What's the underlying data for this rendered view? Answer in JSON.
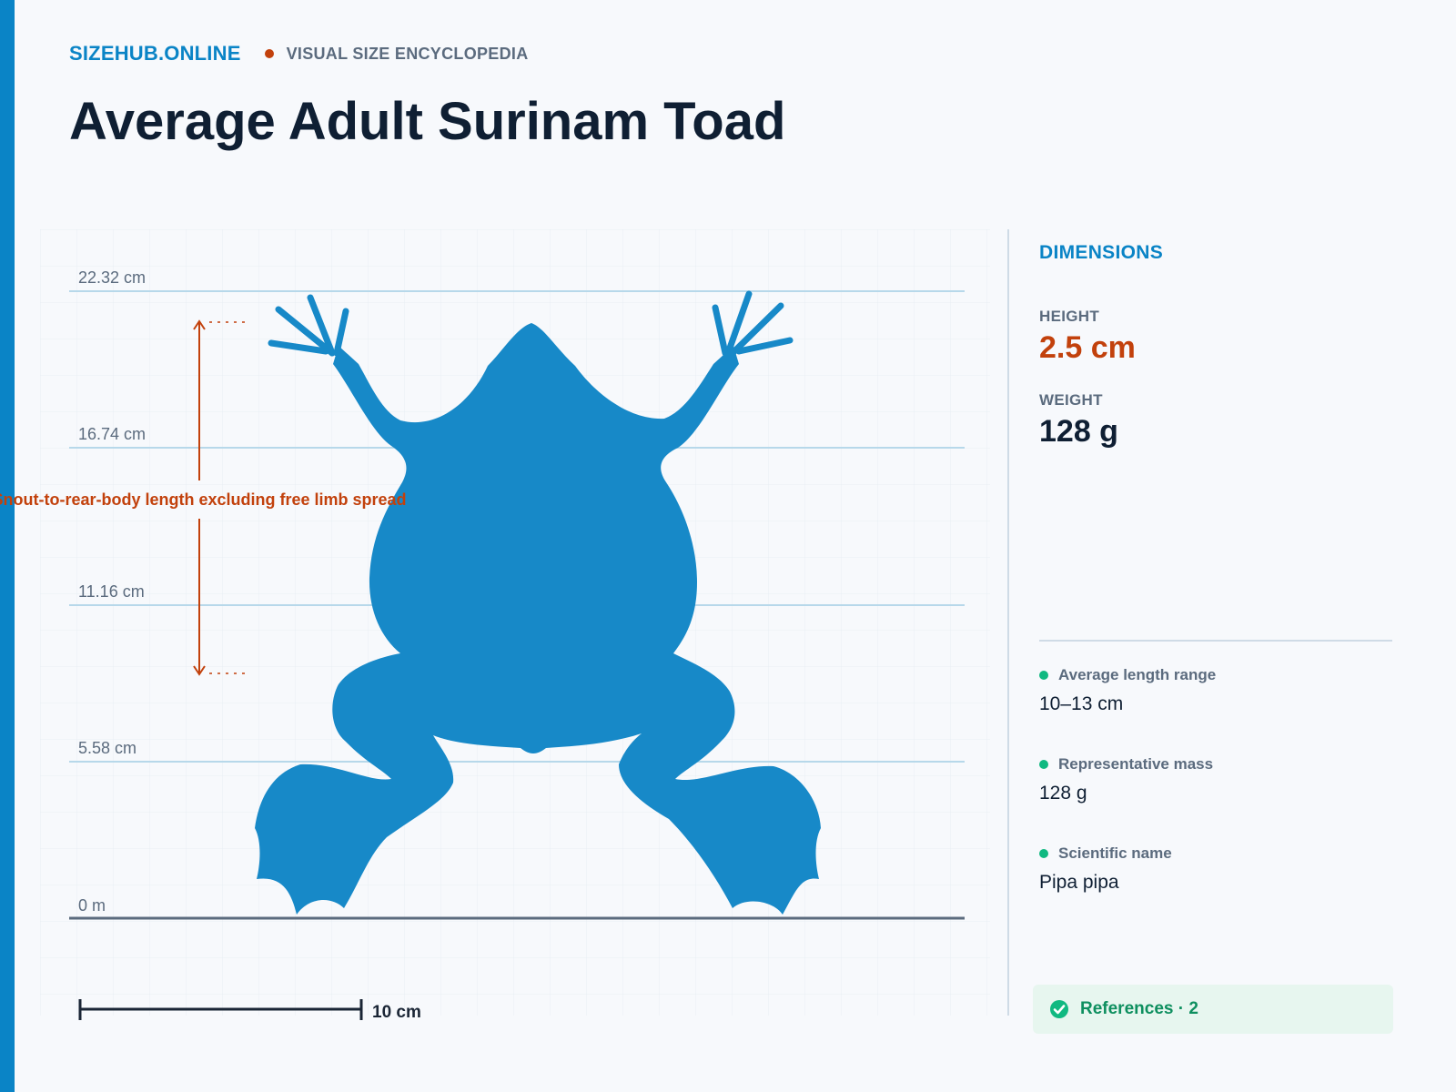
{
  "header": {
    "brand": "SIZEHUB.ONLINE",
    "tagline": "VISUAL SIZE ENCYCLOPEDIA",
    "title": "Average Adult Surinam Toad"
  },
  "diagram": {
    "height_marks": [
      "22.32 cm",
      "16.74 cm",
      "11.16 cm",
      "5.58 cm",
      "0 m"
    ],
    "measure_label": "Snout-to-rear-body length excluding free limb spread",
    "scale_bar_label": "10 cm",
    "silhouette_color": "#1789c8",
    "accent_color": "#c2410c"
  },
  "panel": {
    "heading": "DIMENSIONS",
    "height_label": "HEIGHT",
    "height_value": "2.5 cm",
    "weight_label": "WEIGHT",
    "weight_value": "128 g",
    "facts": [
      {
        "label": "Average length range",
        "value": "10–13 cm"
      },
      {
        "label": "Representative mass",
        "value": "128 g"
      },
      {
        "label": "Scientific name",
        "value": "Pipa pipa"
      }
    ],
    "references": "References · 2"
  }
}
